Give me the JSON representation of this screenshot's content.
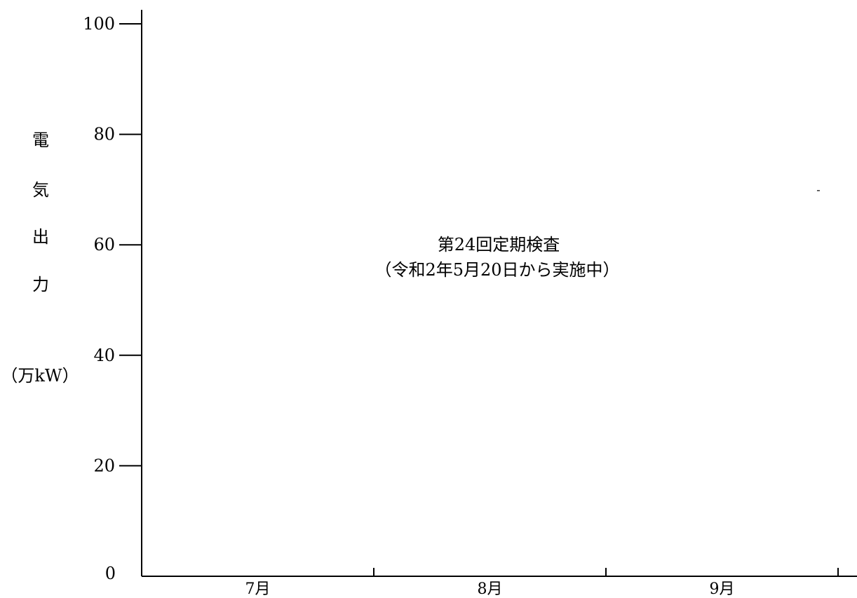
{
  "chart_data": {
    "type": "line",
    "title": "",
    "ylabel_chars": [
      "電",
      "気",
      "出",
      "力"
    ],
    "ylabel_unit": "（万kW）",
    "ylim": [
      0,
      100
    ],
    "yticks": [
      {
        "value": 0,
        "label": "0"
      },
      {
        "value": 20,
        "label": "20"
      },
      {
        "value": 40,
        "label": "40"
      },
      {
        "value": 60,
        "label": "60"
      },
      {
        "value": 80,
        "label": "80"
      },
      {
        "value": 100,
        "label": "100"
      }
    ],
    "x_categories": [
      "7月",
      "8月",
      "9月"
    ],
    "series": [
      {
        "values": [
          0,
          0,
          0
        ]
      }
    ],
    "annotation": {
      "line1": "第24回定期検査",
      "line2": "（令和2年5月20日から実施中）"
    },
    "stray_mark": "-",
    "grid": false,
    "colors": {
      "axis": "#000000",
      "text": "#000000",
      "background": "#ffffff"
    }
  }
}
